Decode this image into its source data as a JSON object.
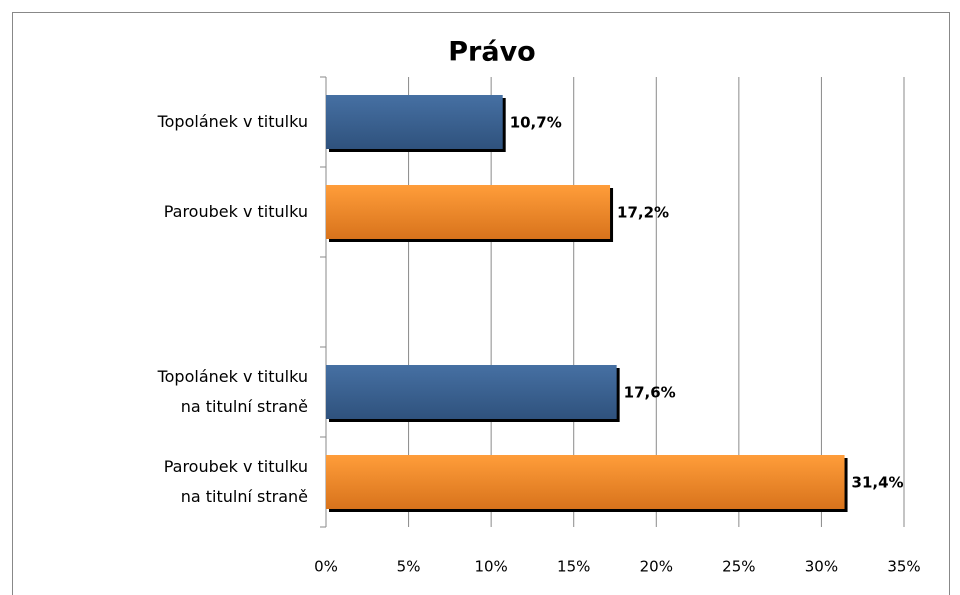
{
  "chart_data": {
    "type": "barh",
    "title": "Právo",
    "categories": [
      [
        "Topolánek v titulku"
      ],
      [
        "Paroubek v titulku"
      ],
      null,
      [
        "Topolánek v titulku",
        "na titulní straně"
      ],
      [
        "Paroubek v titulku",
        "na titulní straně"
      ]
    ],
    "values": [
      10.7,
      17.2,
      null,
      17.6,
      31.4
    ],
    "value_labels": [
      "10,7%",
      "17,2%",
      null,
      "17,6%",
      "31,4%"
    ],
    "colors": [
      "#3a6190",
      "#f28a2a",
      null,
      "#3a6190",
      "#f28a2a"
    ],
    "xlim": [
      0,
      35
    ],
    "xticks": [
      {
        "value": 0,
        "label": "0%"
      },
      {
        "value": 5,
        "label": "5%"
      },
      {
        "value": 10,
        "label": "10%"
      },
      {
        "value": 15,
        "label": "15%"
      },
      {
        "value": 20,
        "label": "20%"
      },
      {
        "value": 25,
        "label": "25%"
      },
      {
        "value": 30,
        "label": "30%"
      },
      {
        "value": 35,
        "label": "35%"
      }
    ],
    "grid": true
  }
}
